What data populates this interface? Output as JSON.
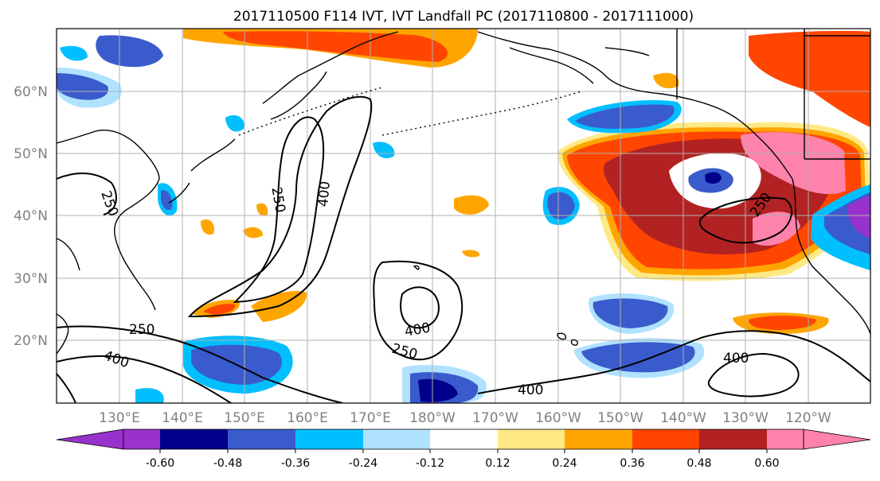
{
  "title": "2017110500 F114 IVT, IVT Landfall PC (2017110800 - 2017111000)",
  "map": {
    "lat_labels": [
      "60°N",
      "50°N",
      "40°N",
      "30°N",
      "20°N"
    ],
    "lon_labels": [
      "130°E",
      "140°E",
      "150°E",
      "160°E",
      "170°E",
      "180°W",
      "170°W",
      "160°W",
      "150°W",
      "140°W",
      "130°W",
      "120°W"
    ],
    "contour_labels": [
      "250",
      "400",
      "250",
      "250",
      "400",
      "250",
      "400",
      "400",
      "250",
      "400"
    ]
  },
  "colorbar": {
    "colors": [
      "#9932CC",
      "#00008B",
      "#3A5BCC",
      "#00BFFF",
      "#B0E2FF",
      "#FFFFFF",
      "#FFE985",
      "#FFA500",
      "#FF4500",
      "#B22222",
      "#FF82AB"
    ],
    "tick_labels": [
      "-0.60",
      "-0.48",
      "-0.36",
      "-0.24",
      "-0.12",
      "0.12",
      "0.24",
      "0.36",
      "0.48",
      "0.60"
    ]
  },
  "colors": {
    "grid": "#b0b0b0",
    "coast": "#000000",
    "contour": "#000000",
    "tick_label": "#808080"
  }
}
